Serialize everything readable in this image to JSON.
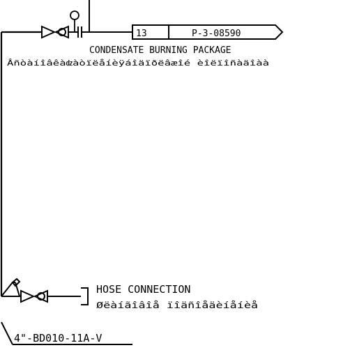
{
  "drawing": {
    "tag_box": {
      "sheet_no": "13",
      "drawing_ref": "P-3-08590"
    },
    "condensate_label": "CONDENSATE BURNING PACKAGE",
    "condensate_label_cyr": "Âñòàíîâêàǳàòïëåíèÿáîäïðëâæîé èîëïîñàäîàà",
    "hose_label": "HOSE CONNECTION",
    "hose_label_cyr": "Øëàíãîâîå ïîäñîåäèíåíèå",
    "line_number": "4\"-BD010-11A-V"
  }
}
